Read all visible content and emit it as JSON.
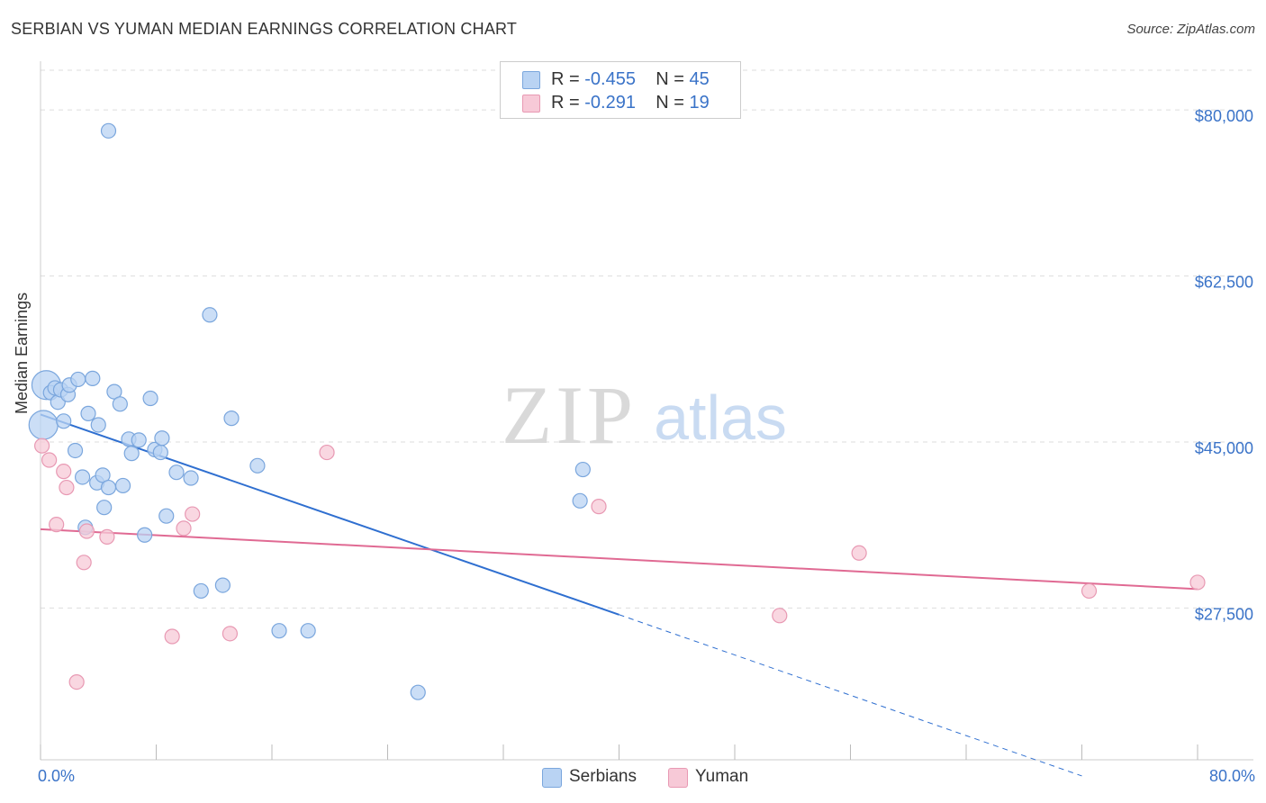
{
  "title": "SERBIAN VS YUMAN MEDIAN EARNINGS CORRELATION CHART",
  "source": "Source: ZipAtlas.com",
  "watermark": {
    "zip": "ZIP",
    "atlas": "atlas"
  },
  "legend": {
    "rows": [
      {
        "r_label": "R = ",
        "r_value": "-0.455",
        "n_label": "N = ",
        "n_value": "45"
      },
      {
        "r_label": "R = ",
        "r_value": "-0.291",
        "n_label": "N = ",
        "n_value": "19"
      }
    ]
  },
  "colors": {
    "serbians_fill": "#b9d3f3",
    "serbians_stroke": "#7aa6dd",
    "serbians_line": "#2f6fd0",
    "yuman_fill": "#f7c9d7",
    "yuman_stroke": "#e899b3",
    "yuman_line": "#e06a93",
    "axis_label": "#3a73c8",
    "grid": "#dddddd"
  },
  "chart_data": {
    "type": "scatter",
    "title": "SERBIAN VS YUMAN MEDIAN EARNINGS CORRELATION CHART",
    "xlabel": "",
    "ylabel": "Median Earnings",
    "xlim": [
      0,
      80
    ],
    "ylim": [
      11500,
      84000
    ],
    "x_tick_labels": [
      "0.0%",
      "80.0%"
    ],
    "y_ticks": [
      27500,
      45000,
      62500,
      80000
    ],
    "y_tick_labels": [
      "$27,500",
      "$45,000",
      "$62,500",
      "$80,000"
    ],
    "grid": true,
    "series": [
      {
        "name": "Serbians",
        "points": [
          [
            0.2,
            46800
          ],
          [
            0.4,
            51000
          ],
          [
            0.7,
            50200
          ],
          [
            1.0,
            50700
          ],
          [
            1.2,
            49200
          ],
          [
            1.4,
            50500
          ],
          [
            1.6,
            47200
          ],
          [
            1.9,
            50000
          ],
          [
            2.0,
            51000
          ],
          [
            2.4,
            44100
          ],
          [
            2.6,
            51600
          ],
          [
            2.9,
            41300
          ],
          [
            3.3,
            48000
          ],
          [
            3.6,
            51700
          ],
          [
            3.9,
            40700
          ],
          [
            4.0,
            46800
          ],
          [
            4.3,
            41500
          ],
          [
            4.4,
            38100
          ],
          [
            4.7,
            40200
          ],
          [
            5.1,
            50300
          ],
          [
            5.5,
            49000
          ],
          [
            5.7,
            40400
          ],
          [
            6.1,
            45300
          ],
          [
            6.3,
            43800
          ],
          [
            6.8,
            45200
          ],
          [
            7.6,
            49600
          ],
          [
            7.2,
            35200
          ],
          [
            7.9,
            44200
          ],
          [
            8.3,
            43900
          ],
          [
            8.4,
            45400
          ],
          [
            8.7,
            37200
          ],
          [
            9.4,
            41800
          ],
          [
            10.4,
            41200
          ],
          [
            11.1,
            29300
          ],
          [
            11.7,
            58400
          ],
          [
            12.6,
            29900
          ],
          [
            13.2,
            47500
          ],
          [
            15.0,
            42500
          ],
          [
            16.5,
            25100
          ],
          [
            18.5,
            25100
          ],
          [
            26.1,
            18600
          ],
          [
            37.3,
            38800
          ],
          [
            37.5,
            42100
          ],
          [
            4.7,
            77800
          ],
          [
            3.1,
            36000
          ]
        ]
      },
      {
        "name": "Yuman",
        "points": [
          [
            0.1,
            44600
          ],
          [
            0.6,
            43100
          ],
          [
            1.1,
            36300
          ],
          [
            1.6,
            41900
          ],
          [
            1.8,
            40200
          ],
          [
            2.5,
            19700
          ],
          [
            3.0,
            32300
          ],
          [
            3.2,
            35600
          ],
          [
            4.6,
            35000
          ],
          [
            9.1,
            24500
          ],
          [
            9.9,
            35900
          ],
          [
            10.5,
            37400
          ],
          [
            13.1,
            24800
          ],
          [
            19.8,
            43900
          ],
          [
            38.6,
            38200
          ],
          [
            51.1,
            26700
          ],
          [
            56.6,
            33300
          ],
          [
            72.5,
            29300
          ],
          [
            80.0,
            30200
          ]
        ]
      }
    ],
    "trendlines": [
      {
        "series": "Serbians",
        "solid_from": [
          0,
          47900
        ],
        "solid_to": [
          40,
          26800
        ],
        "dashed_to": [
          72,
          9800
        ]
      },
      {
        "series": "Yuman",
        "from": [
          0,
          35800
        ],
        "to": [
          80,
          29500
        ]
      }
    ]
  },
  "bottom_legend": [
    {
      "name": "Serbians"
    },
    {
      "name": "Yuman"
    }
  ]
}
